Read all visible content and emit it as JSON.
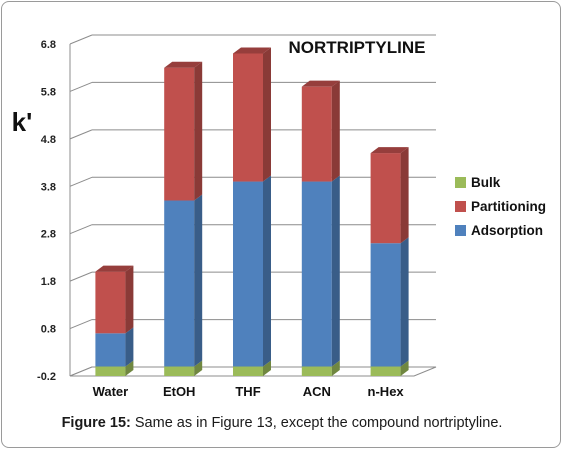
{
  "chart_data": {
    "type": "bar",
    "stacked": true,
    "three_d": true,
    "title": "NORTRIPTYLINE",
    "ylabel": "k'",
    "xlabel": "",
    "categories": [
      "Water",
      "EtOH",
      "THF",
      "ACN",
      "n-Hex"
    ],
    "series": [
      {
        "name": "Bulk",
        "color": "#9bbb59",
        "values": [
          0.2,
          0.2,
          0.2,
          0.2,
          0.2
        ]
      },
      {
        "name": "Adsorption",
        "color": "#4f81bd",
        "values": [
          0.7,
          3.5,
          3.9,
          3.9,
          2.6
        ]
      },
      {
        "name": "Partitioning",
        "color": "#c0504d",
        "values": [
          1.3,
          2.8,
          2.7,
          2.0,
          1.9
        ]
      }
    ],
    "legend_order": [
      "Bulk",
      "Partitioning",
      "Adsorption"
    ],
    "legend_position": "right",
    "yticks": [
      "-0.2",
      "0.8",
      "1.8",
      "2.8",
      "3.8",
      "4.8",
      "5.8",
      "6.8"
    ],
    "ylim": [
      -0.2,
      6.8
    ],
    "grid": true
  },
  "caption": {
    "label": "Figure 15:",
    "text": " Same as in Figure 13, except the compound nortriptyline."
  }
}
